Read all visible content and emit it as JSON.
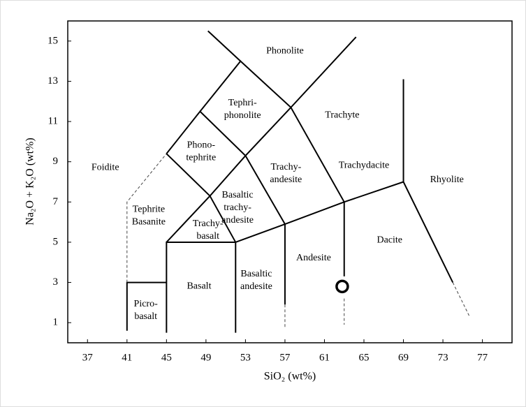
{
  "chart_data": {
    "type": "scatter",
    "x_label": "SiO₂ (wt%)",
    "y_label": "Na₂O + K₂O (wt%)",
    "xlim": [
      35,
      80
    ],
    "ylim": [
      0,
      16
    ],
    "xticks": [
      37,
      41,
      45,
      49,
      53,
      57,
      61,
      65,
      69,
      73,
      77
    ],
    "yticks": [
      1,
      3,
      5,
      7,
      9,
      11,
      13,
      15
    ],
    "series": [
      {
        "x": [
          62.8
        ],
        "y": [
          2.8
        ],
        "color": "#000000"
      }
    ],
    "boundaries": [
      {
        "x": [
          41,
          41,
          45
        ],
        "y": [
          0.6,
          3,
          3
        ],
        "dashed": false
      },
      {
        "x": [
          41,
          41,
          45
        ],
        "y": [
          3,
          7,
          9.4
        ],
        "dashed": true
      },
      {
        "x": [
          45,
          45,
          52,
          52
        ],
        "y": [
          0.5,
          5,
          5,
          0.5
        ],
        "dashed": false
      },
      {
        "x": [
          52,
          57,
          63,
          69,
          74
        ],
        "y": [
          5,
          5.9,
          7,
          8,
          3
        ],
        "dashed": false
      },
      {
        "x": [
          74,
          75.7
        ],
        "y": [
          3,
          1.3
        ],
        "dashed": true
      },
      {
        "x": [
          69,
          69
        ],
        "y": [
          8,
          13.1
        ],
        "dashed": false
      },
      {
        "x": [
          57,
          57
        ],
        "y": [
          5.9,
          1.9
        ],
        "dashed": false
      },
      {
        "x": [
          57,
          57
        ],
        "y": [
          1.9,
          0.7
        ],
        "dashed": true
      },
      {
        "x": [
          63,
          63
        ],
        "y": [
          7,
          3.3
        ],
        "dashed": false
      },
      {
        "x": [
          63,
          63
        ],
        "y": [
          2.2,
          0.9
        ],
        "dashed": true
      },
      {
        "x": [
          45,
          49.4,
          52
        ],
        "y": [
          5,
          7.3,
          5
        ],
        "dashed": false
      },
      {
        "x": [
          45,
          49.4,
          53,
          57.6,
          63
        ],
        "y": [
          9.4,
          7.3,
          9.3,
          11.7,
          7
        ],
        "dashed": false
      },
      {
        "x": [
          57,
          53,
          48.4,
          45
        ],
        "y": [
          5.9,
          9.3,
          11.5,
          9.4
        ],
        "dashed": false
      },
      {
        "x": [
          48.4,
          52.5,
          57.6,
          64.2
        ],
        "y": [
          11.5,
          14,
          11.7,
          15.2
        ],
        "dashed": false
      },
      {
        "x": [
          52.5,
          49.2
        ],
        "y": [
          14,
          15.5
        ],
        "dashed": false
      }
    ],
    "fields": [
      {
        "lines": [
          "Phonolite"
        ],
        "x": 57.0,
        "y": 14.5
      },
      {
        "lines": [
          "Tephri-",
          "phonolite"
        ],
        "x": 52.7,
        "y": 11.6
      },
      {
        "lines": [
          "Trachyte"
        ],
        "x": 62.8,
        "y": 11.3
      },
      {
        "lines": [
          "Phono-",
          "tephrite"
        ],
        "x": 48.5,
        "y": 9.5
      },
      {
        "lines": [
          "Foidite"
        ],
        "x": 38.8,
        "y": 8.7
      },
      {
        "lines": [
          "Trachy-",
          "andesite"
        ],
        "x": 57.1,
        "y": 8.4
      },
      {
        "lines": [
          "Trachydacite"
        ],
        "x": 65.0,
        "y": 8.8
      },
      {
        "lines": [
          "Rhyolite"
        ],
        "x": 73.4,
        "y": 8.1
      },
      {
        "lines": [
          "Basaltic",
          "trachy-",
          "andesite"
        ],
        "x": 52.2,
        "y": 6.7
      },
      {
        "lines": [
          "Tephrite",
          "Basanite"
        ],
        "x": 43.2,
        "y": 6.3
      },
      {
        "lines": [
          "Trachy-",
          "basalt"
        ],
        "x": 49.2,
        "y": 5.6
      },
      {
        "lines": [
          "Andesite"
        ],
        "x": 59.9,
        "y": 4.2
      },
      {
        "lines": [
          "Dacite"
        ],
        "x": 67.6,
        "y": 5.1
      },
      {
        "lines": [
          "Basaltic",
          "andesite"
        ],
        "x": 54.1,
        "y": 3.1
      },
      {
        "lines": [
          "Basalt"
        ],
        "x": 48.3,
        "y": 2.8
      },
      {
        "lines": [
          "Picro-",
          "basalt"
        ],
        "x": 42.9,
        "y": 1.6
      }
    ]
  }
}
